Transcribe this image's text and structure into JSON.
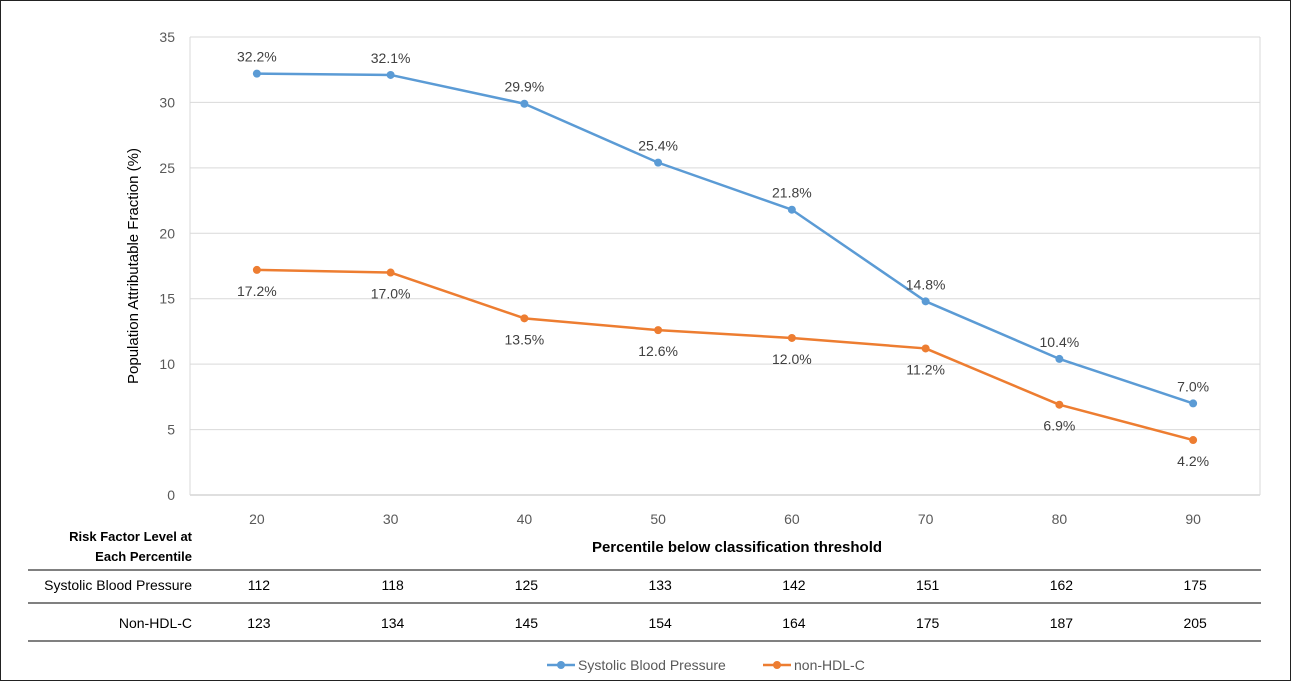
{
  "chart_data": {
    "type": "line",
    "title": "",
    "xlabel": "Percentile below classification threshold",
    "ylabel": "Population Attributable Fraction (%)",
    "x": [
      20,
      30,
      40,
      50,
      60,
      70,
      80,
      90
    ],
    "ylim": [
      0,
      35
    ],
    "yticks": [
      0,
      5,
      10,
      15,
      20,
      25,
      30,
      35
    ],
    "grid": true,
    "legend_position": "bottom",
    "series": [
      {
        "name": "Systolic Blood Pressure",
        "color": "#5B9BD5",
        "values": [
          32.2,
          32.1,
          29.9,
          25.4,
          21.8,
          14.8,
          10.4,
          7.0
        ],
        "labels": [
          "32.2%",
          "32.1%",
          "29.9%",
          "25.4%",
          "21.8%",
          "14.8%",
          "10.4%",
          "7.0%"
        ],
        "label_position": "above"
      },
      {
        "name": "non-HDL-C",
        "color": "#ED7D31",
        "values": [
          17.2,
          17.0,
          13.5,
          12.6,
          12.0,
          11.2,
          6.9,
          4.2
        ],
        "labels": [
          "17.2%",
          "17.0%",
          "13.5%",
          "12.6%",
          "12.0%",
          "11.2%",
          "6.9%",
          "4.2%"
        ],
        "label_position": "below"
      }
    ]
  },
  "risk_table": {
    "header_line1": "Risk Factor Level  at",
    "header_line2": "Each Percentile",
    "rows": [
      {
        "label": "Systolic Blood Pressure",
        "values": [
          "112",
          "118",
          "125",
          "133",
          "142",
          "151",
          "162",
          "175"
        ]
      },
      {
        "label": "Non-HDL-C",
        "values": [
          "123",
          "134",
          "145",
          "154",
          "164",
          "175",
          "187",
          "205"
        ]
      }
    ]
  }
}
